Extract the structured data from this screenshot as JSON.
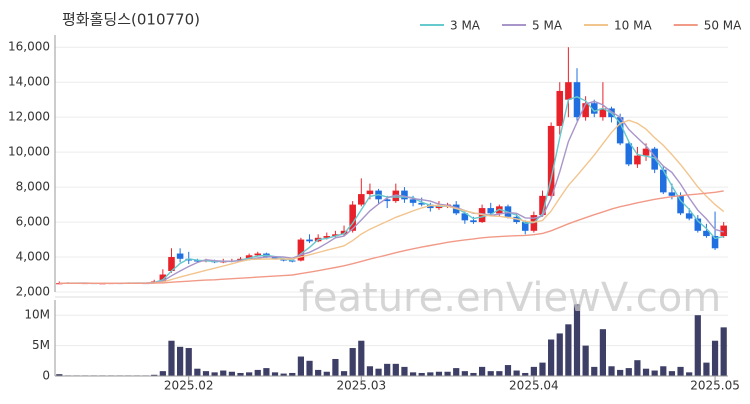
{
  "title": "평화홀딩스(010770)",
  "watermark": "feature.enViewV.com",
  "chart_data": [
    {
      "type": "candlestick",
      "up_color": "#e8222a",
      "down_color": "#1f6fe0",
      "grid": true,
      "legend": "top-right",
      "ylim": [
        2000,
        16700
      ],
      "yticks": [
        {
          "value": 2000,
          "label": "2,000"
        },
        {
          "value": 4000,
          "label": "4,000"
        },
        {
          "value": 6000,
          "label": "6,000"
        },
        {
          "value": 8000,
          "label": "8,000"
        },
        {
          "value": 10000,
          "label": "10,000"
        },
        {
          "value": 12000,
          "label": "12,000"
        },
        {
          "value": 14000,
          "label": "14,000"
        },
        {
          "value": 16000,
          "label": "16,000"
        }
      ],
      "open": [
        2480,
        2500,
        2520,
        2500,
        2510,
        2490,
        2500,
        2510,
        2500,
        2520,
        2510,
        2500,
        2600,
        3200,
        4200,
        3900,
        3800,
        3750,
        3800,
        3700,
        3750,
        3800,
        3900,
        4100,
        4200,
        4000,
        3900,
        3800,
        3800,
        5000,
        4900,
        5100,
        5200,
        5300,
        5500,
        7000,
        7600,
        7800,
        7300,
        7200,
        7800,
        7300,
        7100,
        7000,
        6800,
        6900,
        7000,
        6500,
        6100,
        6000,
        6800,
        6500,
        6900,
        6300,
        6000,
        5500,
        6400,
        7500,
        11500,
        13000,
        14000,
        12000,
        12800,
        12000,
        12500,
        12000,
        10500,
        9300,
        9800,
        10200,
        9000,
        7700,
        7500,
        6500,
        6200,
        5500,
        5200,
        5200
      ],
      "high": [
        2600,
        2560,
        2540,
        2540,
        2520,
        2530,
        2540,
        2520,
        2550,
        2530,
        2530,
        2700,
        3300,
        4500,
        4500,
        4300,
        3900,
        3900,
        3850,
        3900,
        3900,
        4000,
        4200,
        4300,
        4250,
        4050,
        3950,
        3900,
        5100,
        5300,
        5300,
        5400,
        5500,
        5800,
        7200,
        8500,
        8200,
        7900,
        7500,
        8200,
        8000,
        7500,
        7400,
        7100,
        7200,
        7100,
        7200,
        6600,
        6300,
        7000,
        7100,
        7000,
        7000,
        6500,
        6100,
        6600,
        7800,
        11700,
        14000,
        16000,
        14800,
        13200,
        13000,
        14000,
        12600,
        12200,
        10600,
        10300,
        10500,
        10300,
        9200,
        8200,
        7700,
        6800,
        6400,
        5900,
        6600,
        6000
      ],
      "low": [
        2450,
        2480,
        2480,
        2490,
        2470,
        2480,
        2490,
        2480,
        2490,
        2490,
        2480,
        2490,
        2580,
        3100,
        3700,
        3600,
        3700,
        3700,
        3650,
        3650,
        3700,
        3750,
        3850,
        4050,
        3950,
        3850,
        3750,
        3700,
        3750,
        4800,
        4850,
        5000,
        5100,
        5200,
        5400,
        6900,
        7300,
        7000,
        6800,
        7100,
        7100,
        6900,
        6900,
        6600,
        6700,
        6800,
        6400,
        5900,
        5900,
        5950,
        6400,
        6300,
        6200,
        5900,
        5300,
        5400,
        6300,
        7400,
        11000,
        12000,
        11800,
        11800,
        12000,
        11800,
        11700,
        10400,
        9200,
        9100,
        9500,
        8800,
        7600,
        7300,
        6400,
        6100,
        5400,
        5100,
        4400,
        5100
      ],
      "close": [
        2500,
        2520,
        2500,
        2510,
        2490,
        2500,
        2510,
        2500,
        2520,
        2510,
        2500,
        2600,
        3000,
        4000,
        3900,
        3800,
        3750,
        3800,
        3700,
        3750,
        3800,
        3900,
        4100,
        4200,
        4000,
        3900,
        3800,
        3750,
        5000,
        4900,
        5100,
        5200,
        5300,
        5500,
        7000,
        7600,
        7800,
        7300,
        7200,
        7800,
        7300,
        7100,
        7000,
        6800,
        6900,
        7000,
        6500,
        6100,
        6000,
        6800,
        6500,
        6900,
        6300,
        6000,
        5500,
        6400,
        7500,
        11500,
        13500,
        14000,
        12000,
        12800,
        12200,
        12500,
        12000,
        10500,
        9300,
        9800,
        10200,
        9000,
        7700,
        7500,
        6500,
        6200,
        5500,
        5200,
        4500,
        5800
      ],
      "series": [
        {
          "name": "3 MA",
          "color": "#66c9cc",
          "values": [
            2500,
            2510,
            2507,
            2510,
            2500,
            2500,
            2500,
            2503,
            2510,
            2510,
            2510,
            2537,
            2700,
            3200,
            3633,
            3900,
            3817,
            3783,
            3750,
            3750,
            3750,
            3817,
            3933,
            4067,
            4100,
            4033,
            3900,
            3817,
            4183,
            4550,
            5000,
            5067,
            5200,
            5333,
            5933,
            6700,
            7467,
            7567,
            7433,
            7433,
            7433,
            7400,
            7133,
            6967,
            6900,
            6900,
            6800,
            6533,
            6200,
            6300,
            6433,
            6733,
            6567,
            6400,
            5933,
            5967,
            6467,
            8467,
            10833,
            13000,
            13167,
            12933,
            12333,
            12500,
            12233,
            11667,
            10600,
            9867,
            9767,
            9667,
            8967,
            8067,
            7233,
            6733,
            6067,
            5633,
            5067,
            5167
          ]
        },
        {
          "name": "5 MA",
          "color": "#a895c9",
          "values": [
            2500,
            2505,
            2505,
            2508,
            2504,
            2504,
            2502,
            2502,
            2504,
            2508,
            2508,
            2526,
            2626,
            2926,
            3200,
            3460,
            3690,
            3850,
            3790,
            3760,
            3760,
            3790,
            3850,
            3950,
            4000,
            4020,
            4000,
            3930,
            4130,
            4270,
            4510,
            4790,
            5100,
            5200,
            5620,
            6120,
            6640,
            7040,
            7380,
            7540,
            7480,
            7340,
            7280,
            7200,
            7020,
            6960,
            6840,
            6660,
            6500,
            6480,
            6380,
            6460,
            6540,
            6500,
            6240,
            6220,
            6340,
            7340,
            8880,
            10600,
            11700,
            12760,
            12900,
            12700,
            12300,
            12000,
            11300,
            10820,
            10360,
            9760,
            9200,
            8840,
            8180,
            7380,
            6680,
            6180,
            5580,
            5440
          ]
        },
        {
          "name": "10 MA",
          "color": "#f2c58e",
          "values": [
            2505,
            2505,
            2505,
            2505,
            2505,
            2505,
            2505,
            2505,
            2505,
            2505,
            2505,
            2515,
            2565,
            2715,
            2855,
            2985,
            3110,
            3240,
            3360,
            3485,
            3615,
            3745,
            3855,
            3875,
            3885,
            3885,
            3890,
            3885,
            4015,
            4130,
            4260,
            4390,
            4510,
            4640,
            4940,
            5310,
            5590,
            5820,
            6040,
            6270,
            6450,
            6640,
            6810,
            6940,
            6960,
            6900,
            6770,
            6650,
            6530,
            6430,
            6350,
            6330,
            6260,
            6180,
            6050,
            5990,
            6090,
            6630,
            7380,
            8100,
            8650,
            9240,
            9830,
            10480,
            11130,
            11640,
            11820,
            11650,
            11320,
            10820,
            10390,
            9860,
            9290,
            8660,
            8010,
            7480,
            7000,
            6600
          ]
        },
        {
          "name": "50 MA",
          "color": "#f29a88",
          "values": [
            2500,
            2500,
            2500,
            2500,
            2500,
            2500,
            2500,
            2500,
            2500,
            2500,
            2500,
            2510,
            2520,
            2560,
            2590,
            2620,
            2650,
            2680,
            2700,
            2730,
            2760,
            2790,
            2820,
            2850,
            2880,
            2910,
            2940,
            2970,
            3050,
            3130,
            3220,
            3310,
            3400,
            3500,
            3620,
            3750,
            3880,
            4000,
            4120,
            4250,
            4360,
            4470,
            4570,
            4660,
            4750,
            4840,
            4910,
            4980,
            5040,
            5100,
            5140,
            5170,
            5200,
            5220,
            5240,
            5280,
            5350,
            5500,
            5700,
            5900,
            6080,
            6250,
            6420,
            6580,
            6740,
            6880,
            6990,
            7100,
            7200,
            7300,
            7380,
            7450,
            7510,
            7560,
            7600,
            7650,
            7700,
            7780
          ]
        }
      ]
    },
    {
      "type": "bar",
      "color": "#3e3f66",
      "ylim": [
        0,
        12500000
      ],
      "yticks": [
        0,
        {
          "value": 5000000,
          "label": "5M"
        },
        {
          "value": 10000000,
          "label": "10M"
        }
      ],
      "categories": [
        null,
        null,
        null,
        null,
        null,
        null,
        null,
        null,
        null,
        null,
        null,
        null,
        null,
        null,
        null,
        "2025.02",
        null,
        null,
        null,
        null,
        null,
        null,
        null,
        null,
        null,
        null,
        null,
        null,
        null,
        null,
        null,
        null,
        null,
        null,
        null,
        "2025.03",
        null,
        null,
        null,
        null,
        null,
        null,
        null,
        null,
        null,
        null,
        null,
        null,
        null,
        null,
        null,
        null,
        null,
        null,
        null,
        "2025.04",
        null,
        null,
        null,
        null,
        null,
        null,
        null,
        null,
        null,
        null,
        null,
        null,
        null,
        null,
        null,
        null,
        null,
        null,
        null,
        null,
        "2025.05",
        null
      ],
      "values": [
        300000,
        100000,
        100000,
        100000,
        100000,
        100000,
        100000,
        100000,
        100000,
        100000,
        100000,
        200000,
        800000,
        5800000,
        4800000,
        4600000,
        1200000,
        800000,
        600000,
        900000,
        700000,
        500000,
        600000,
        1000000,
        1300000,
        600000,
        400000,
        500000,
        3200000,
        2500000,
        1000000,
        700000,
        2800000,
        800000,
        4600000,
        5800000,
        1600000,
        1200000,
        2000000,
        2000000,
        1500000,
        600000,
        500000,
        600000,
        700000,
        700000,
        1300000,
        800000,
        500000,
        1500000,
        800000,
        800000,
        1800000,
        900000,
        500000,
        1500000,
        2200000,
        6000000,
        7000000,
        8500000,
        11800000,
        5000000,
        1500000,
        7700000,
        1600000,
        1000000,
        1300000,
        2600000,
        1200000,
        900000,
        1600000,
        800000,
        1500000,
        600000,
        10000000,
        2200000,
        5800000,
        8000000
      ]
    }
  ]
}
